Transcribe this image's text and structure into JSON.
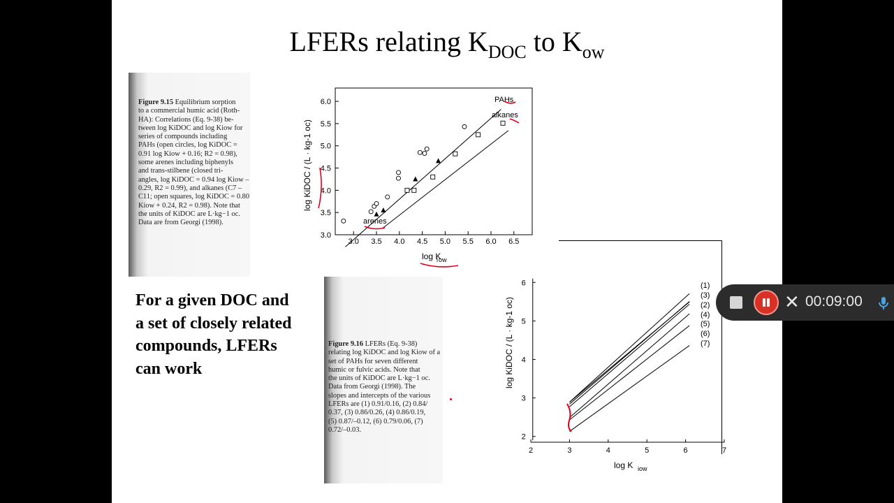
{
  "slide": {
    "title_main": "LFERs relating K",
    "title_sub1": "DOC",
    "title_mid": " to K",
    "title_sub2": "ow",
    "body_text_lines": [
      "For a given DOC and",
      "a set of closely related",
      "compounds, LFERs",
      "can work"
    ]
  },
  "figure_9_15": {
    "caption_label": "Figure 9.15",
    "caption_lines": [
      " Equilibrium sorption",
      "to a commercial humic acid (Roth-",
      "HA): Correlations (Eq. 9-38) be-",
      "tween log KiDOC and log Kiow for",
      "series of compounds including",
      "PAHs (open circles, log KiDOC =",
      "0.91 log Kiow + 0.16; R2 = 0.98),",
      "some arenes including biphenyls",
      "and trans-stilbene (closed tri-",
      "angles, log KiDOC = 0.94 log Kiow –",
      "0.29, R2 = 0.99), and alkanes (C7 –",
      "C11; open squares, log KiDOC = 0.80",
      "Kiow + 0.24, R2 = 0.98). Note that",
      "the units of KiDOC are L·kg−1 oc.",
      "Data are from Georgi (1998)."
    ]
  },
  "figure_9_16": {
    "caption_label": "Figure 9.16",
    "caption_lines": [
      " LFERs (Eq. 9-38)",
      "relating log KiDOC and log Kiow of a",
      "set of PAHs for seven different",
      "humic or fulvic acids. Note that",
      "the units of KiDOC are L·kg−1 oc.",
      "Data from Georgi (1998). The",
      "slopes and intercepts of the various",
      "LFERs are (1) 0.91/0.16, (2) 0.84/",
      "0.37, (3) 0.86/0.26, (4) 0.86/0.19,",
      "(5) 0.87/–0.12, (6) 0.79/0.06, (7)",
      "0.72/–0.03."
    ]
  },
  "chart_data": [
    {
      "type": "scatter",
      "xlabel": "log Kiow",
      "ylabel": "log KiDOC / (L · kg-1 oc)",
      "xlim": [
        2.6,
        6.9
      ],
      "ylim": [
        3.0,
        6.3
      ],
      "xticks": [
        "3.0",
        "3.5",
        "4.0",
        "4.5",
        "5.0",
        "5.5",
        "6.0",
        "6.5"
      ],
      "yticks": [
        "3.0",
        "3.5",
        "4.0",
        "4.5",
        "5.0",
        "5.5",
        "6.0"
      ],
      "annotations": [
        "PAHs",
        "alkanes",
        "arenes"
      ],
      "grid": false,
      "series": [
        {
          "name": "PAHs",
          "marker": "open-circle",
          "x": [
            2.78,
            3.38,
            3.45,
            3.5,
            3.74,
            3.98,
            3.98,
            4.45,
            4.55,
            4.6,
            5.42
          ],
          "y": [
            3.31,
            3.52,
            3.64,
            3.7,
            3.85,
            4.27,
            4.4,
            4.85,
            4.83,
            4.93,
            5.43
          ],
          "fit": {
            "slope": 0.91,
            "intercept": 0.16
          }
        },
        {
          "name": "arenes",
          "marker": "filled-triangle",
          "x": [
            3.5,
            3.65,
            4.35,
            4.85
          ],
          "y": [
            3.46,
            3.55,
            4.25,
            4.66
          ],
          "fit": {
            "slope": 0.94,
            "intercept": -0.29
          }
        },
        {
          "name": "alkanes",
          "marker": "open-square",
          "x": [
            4.17,
            4.32,
            4.73,
            5.22,
            5.72,
            6.26
          ],
          "y": [
            4.0,
            4.0,
            4.3,
            4.82,
            5.25,
            5.51
          ],
          "fit": {
            "slope": 0.8,
            "intercept": 0.24
          }
        }
      ]
    },
    {
      "type": "line",
      "xlabel": "log Kiow",
      "ylabel": "log KiDOC / (L · kg-1 oc)",
      "xlim": [
        2,
        7
      ],
      "ylim": [
        1.85,
        6.15
      ],
      "xticks": [
        "2",
        "3",
        "4",
        "5",
        "6",
        "7"
      ],
      "yticks": [
        "2",
        "3",
        "4",
        "5",
        "6"
      ],
      "x_range": [
        3,
        6.1
      ],
      "series": [
        {
          "name": "(1)",
          "slope": 0.91,
          "intercept": 0.16
        },
        {
          "name": "(3)",
          "slope": 0.86,
          "intercept": 0.26
        },
        {
          "name": "(2)",
          "slope": 0.84,
          "intercept": 0.37
        },
        {
          "name": "(4)",
          "slope": 0.86,
          "intercept": 0.19
        },
        {
          "name": "(5)",
          "slope": 0.87,
          "intercept": -0.12
        },
        {
          "name": "(6)",
          "slope": 0.79,
          "intercept": 0.06
        },
        {
          "name": "(7)",
          "slope": 0.72,
          "intercept": -0.03
        }
      ]
    }
  ],
  "recorder": {
    "timer": "00:09:00",
    "ink_color": "#e0001a"
  }
}
